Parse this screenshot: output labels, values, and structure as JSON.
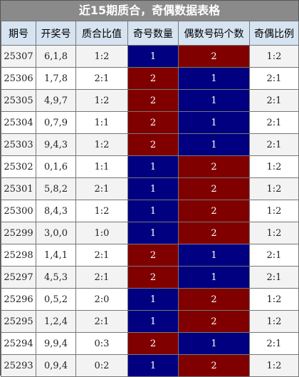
{
  "title": "近15期质合，奇偶数据表格",
  "headers": [
    "期号",
    "开奖号",
    "质合比值",
    "奇号数量",
    "偶数号码个数",
    "奇偶比例"
  ],
  "colors": {
    "blue": "#000080",
    "red": "#800000",
    "header_bg": "#d6e3f1",
    "title_bg": "#8a8a8a"
  },
  "rows": [
    {
      "period": "25307",
      "numbers": "6,1,8",
      "prime_ratio": "1:2",
      "odd_count": "1",
      "even_count": "2",
      "odd_even_ratio": "1:2"
    },
    {
      "period": "25306",
      "numbers": "1,7,8",
      "prime_ratio": "2:1",
      "odd_count": "2",
      "even_count": "1",
      "odd_even_ratio": "2:1"
    },
    {
      "period": "25305",
      "numbers": "4,9,7",
      "prime_ratio": "1:2",
      "odd_count": "2",
      "even_count": "1",
      "odd_even_ratio": "2:1"
    },
    {
      "period": "25304",
      "numbers": "0,7,9",
      "prime_ratio": "1:1",
      "odd_count": "2",
      "even_count": "1",
      "odd_even_ratio": "2:1"
    },
    {
      "period": "25303",
      "numbers": "9,4,3",
      "prime_ratio": "1:2",
      "odd_count": "2",
      "even_count": "1",
      "odd_even_ratio": "2:1"
    },
    {
      "period": "25302",
      "numbers": "0,1,6",
      "prime_ratio": "1:1",
      "odd_count": "1",
      "even_count": "2",
      "odd_even_ratio": "1:2"
    },
    {
      "period": "25301",
      "numbers": "5,8,2",
      "prime_ratio": "2:1",
      "odd_count": "1",
      "even_count": "2",
      "odd_even_ratio": "1:2"
    },
    {
      "period": "25300",
      "numbers": "8,4,3",
      "prime_ratio": "1:2",
      "odd_count": "1",
      "even_count": "2",
      "odd_even_ratio": "1:2"
    },
    {
      "period": "25299",
      "numbers": "3,0,0",
      "prime_ratio": "1:0",
      "odd_count": "1",
      "even_count": "2",
      "odd_even_ratio": "1:2"
    },
    {
      "period": "25298",
      "numbers": "1,4,1",
      "prime_ratio": "2:1",
      "odd_count": "2",
      "even_count": "1",
      "odd_even_ratio": "2:1"
    },
    {
      "period": "25297",
      "numbers": "4,5,3",
      "prime_ratio": "2:1",
      "odd_count": "2",
      "even_count": "1",
      "odd_even_ratio": "2:1"
    },
    {
      "period": "25296",
      "numbers": "0,5,2",
      "prime_ratio": "2:0",
      "odd_count": "1",
      "even_count": "2",
      "odd_even_ratio": "1:2"
    },
    {
      "period": "25295",
      "numbers": "1,2,4",
      "prime_ratio": "2:1",
      "odd_count": "1",
      "even_count": "2",
      "odd_even_ratio": "1:2"
    },
    {
      "period": "25294",
      "numbers": "9,9,4",
      "prime_ratio": "0:3",
      "odd_count": "2",
      "even_count": "1",
      "odd_even_ratio": "2:1"
    },
    {
      "period": "25293",
      "numbers": "0,9,4",
      "prime_ratio": "0:2",
      "odd_count": "1",
      "even_count": "2",
      "odd_even_ratio": "1:2"
    }
  ]
}
